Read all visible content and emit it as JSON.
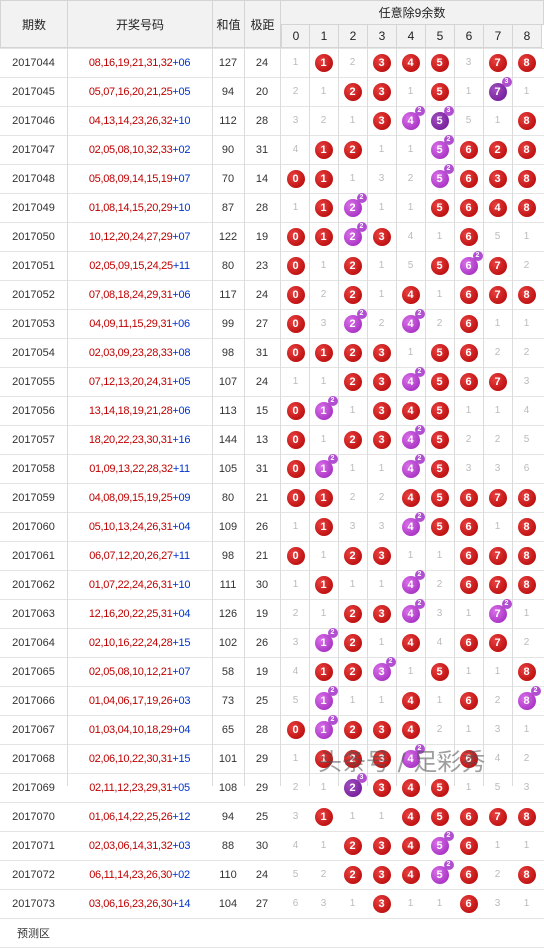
{
  "headers": {
    "period": "期数",
    "numbers": "开奖号码",
    "sum": "和值",
    "span": "极距",
    "group": "任意除9余数",
    "digits": [
      "0",
      "1",
      "2",
      "3",
      "4",
      "5",
      "6",
      "7",
      "8"
    ]
  },
  "rows": [
    {
      "period": "2017044",
      "nums": "08,16,19,21,31,32",
      "blue": "+06",
      "sum": "127",
      "span": "24",
      "cells": [
        {
          "t": "1"
        },
        {
          "b": "1"
        },
        {
          "t": "2"
        },
        {
          "b": "3"
        },
        {
          "b": "4"
        },
        {
          "b": "5"
        },
        {
          "t": "3"
        },
        {
          "b": "7"
        },
        {
          "b": "8"
        }
      ]
    },
    {
      "period": "2017045",
      "nums": "05,07,16,20,21,25",
      "blue": "+05",
      "sum": "94",
      "span": "20",
      "cells": [
        {
          "t": "2"
        },
        {
          "t": "1"
        },
        {
          "b": "2"
        },
        {
          "b": "3"
        },
        {
          "t": "1"
        },
        {
          "b": "5"
        },
        {
          "t": "1"
        },
        {
          "b": "7",
          "c": "dpurple",
          "s": "3"
        },
        {
          "t": "1"
        }
      ]
    },
    {
      "period": "2017046",
      "nums": "04,13,14,23,26,32",
      "blue": "+10",
      "sum": "112",
      "span": "28",
      "cells": [
        {
          "t": "3"
        },
        {
          "t": "2"
        },
        {
          "t": "1"
        },
        {
          "b": "3"
        },
        {
          "b": "4",
          "c": "purple",
          "s": "2"
        },
        {
          "b": "5",
          "c": "dpurple",
          "s": "3"
        },
        {
          "t": "5"
        },
        {
          "t": "1"
        },
        {
          "b": "8"
        }
      ]
    },
    {
      "period": "2017047",
      "nums": "02,05,08,10,32,33",
      "blue": "+02",
      "sum": "90",
      "span": "31",
      "cells": [
        {
          "t": "4"
        },
        {
          "b": "1"
        },
        {
          "b": "2"
        },
        {
          "t": "1"
        },
        {
          "t": "1"
        },
        {
          "b": "5",
          "c": "purple",
          "s": "2"
        },
        {
          "b": "6"
        },
        {
          "b": "2"
        },
        {
          "b": "8"
        }
      ]
    },
    {
      "period": "2017048",
      "nums": "05,08,09,14,15,19",
      "blue": "+07",
      "sum": "70",
      "span": "14",
      "cells": [
        {
          "b": "0"
        },
        {
          "b": "1"
        },
        {
          "t": "1"
        },
        {
          "t": "3"
        },
        {
          "t": "2"
        },
        {
          "b": "5",
          "c": "purple",
          "s": "2"
        },
        {
          "b": "6"
        },
        {
          "b": "3"
        },
        {
          "b": "8"
        }
      ]
    },
    {
      "period": "2017049",
      "nums": "01,08,14,15,20,29",
      "blue": "+10",
      "sum": "87",
      "span": "28",
      "cells": [
        {
          "t": "1"
        },
        {
          "b": "1"
        },
        {
          "b": "2",
          "c": "purple",
          "s": "2"
        },
        {
          "t": "1"
        },
        {
          "t": "1"
        },
        {
          "b": "5"
        },
        {
          "b": "6"
        },
        {
          "b": "4"
        },
        {
          "b": "8"
        }
      ]
    },
    {
      "period": "2017050",
      "nums": "10,12,20,24,27,29",
      "blue": "+07",
      "sum": "122",
      "span": "19",
      "cells": [
        {
          "b": "0"
        },
        {
          "b": "1"
        },
        {
          "b": "2",
          "c": "purple",
          "s": "2"
        },
        {
          "b": "3"
        },
        {
          "t": "4"
        },
        {
          "t": "1"
        },
        {
          "b": "6"
        },
        {
          "t": "5"
        },
        {
          "t": "1"
        }
      ]
    },
    {
      "period": "2017051",
      "nums": "02,05,09,15,24,25",
      "blue": "+11",
      "sum": "80",
      "span": "23",
      "cells": [
        {
          "b": "0"
        },
        {
          "t": "1"
        },
        {
          "b": "2"
        },
        {
          "t": "1"
        },
        {
          "t": "5"
        },
        {
          "b": "5"
        },
        {
          "b": "6",
          "c": "purple",
          "s": "2"
        },
        {
          "b": "7"
        },
        {
          "t": "2"
        }
      ]
    },
    {
      "period": "2017052",
      "nums": "07,08,18,24,29,31",
      "blue": "+06",
      "sum": "117",
      "span": "24",
      "cells": [
        {
          "b": "0"
        },
        {
          "t": "2"
        },
        {
          "b": "2"
        },
        {
          "t": "1"
        },
        {
          "b": "4"
        },
        {
          "t": "1"
        },
        {
          "b": "6"
        },
        {
          "b": "7"
        },
        {
          "b": "8"
        }
      ]
    },
    {
      "period": "2017053",
      "nums": "04,09,11,15,29,31",
      "blue": "+06",
      "sum": "99",
      "span": "27",
      "cells": [
        {
          "b": "0"
        },
        {
          "t": "3"
        },
        {
          "b": "2",
          "c": "purple",
          "s": "2"
        },
        {
          "t": "2"
        },
        {
          "b": "4",
          "c": "purple",
          "s": "2"
        },
        {
          "t": "2"
        },
        {
          "b": "6"
        },
        {
          "t": "1"
        },
        {
          "t": "1"
        }
      ]
    },
    {
      "period": "2017054",
      "nums": "02,03,09,23,28,33",
      "blue": "+08",
      "sum": "98",
      "span": "31",
      "cells": [
        {
          "b": "0"
        },
        {
          "b": "1"
        },
        {
          "b": "2"
        },
        {
          "b": "3"
        },
        {
          "t": "1"
        },
        {
          "b": "5"
        },
        {
          "b": "6"
        },
        {
          "t": "2"
        },
        {
          "t": "2"
        }
      ]
    },
    {
      "period": "2017055",
      "nums": "07,12,13,20,24,31",
      "blue": "+05",
      "sum": "107",
      "span": "24",
      "cells": [
        {
          "t": "1"
        },
        {
          "t": "1"
        },
        {
          "b": "2"
        },
        {
          "b": "3"
        },
        {
          "b": "4",
          "c": "purple",
          "s": "2"
        },
        {
          "b": "5"
        },
        {
          "b": "6"
        },
        {
          "b": "7"
        },
        {
          "t": "3"
        }
      ]
    },
    {
      "period": "2017056",
      "nums": "13,14,18,19,21,28",
      "blue": "+06",
      "sum": "113",
      "span": "15",
      "cells": [
        {
          "b": "0"
        },
        {
          "b": "1",
          "c": "purple",
          "s": "2"
        },
        {
          "t": "1"
        },
        {
          "b": "3"
        },
        {
          "b": "4"
        },
        {
          "b": "5"
        },
        {
          "t": "1"
        },
        {
          "t": "1"
        },
        {
          "t": "4"
        }
      ]
    },
    {
      "period": "2017057",
      "nums": "18,20,22,23,30,31",
      "blue": "+16",
      "sum": "144",
      "span": "13",
      "cells": [
        {
          "b": "0"
        },
        {
          "t": "1"
        },
        {
          "b": "2"
        },
        {
          "b": "3"
        },
        {
          "b": "4",
          "c": "purple",
          "s": "2"
        },
        {
          "b": "5"
        },
        {
          "t": "2"
        },
        {
          "t": "2"
        },
        {
          "t": "5"
        }
      ]
    },
    {
      "period": "2017058",
      "nums": "01,09,13,22,28,32",
      "blue": "+11",
      "sum": "105",
      "span": "31",
      "cells": [
        {
          "b": "0"
        },
        {
          "b": "1",
          "c": "purple",
          "s": "2"
        },
        {
          "t": "1"
        },
        {
          "t": "1"
        },
        {
          "b": "4",
          "c": "purple",
          "s": "2"
        },
        {
          "b": "5"
        },
        {
          "t": "3"
        },
        {
          "t": "3"
        },
        {
          "t": "6"
        }
      ]
    },
    {
      "period": "2017059",
      "nums": "04,08,09,15,19,25",
      "blue": "+09",
      "sum": "80",
      "span": "21",
      "cells": [
        {
          "b": "0"
        },
        {
          "b": "1"
        },
        {
          "t": "2"
        },
        {
          "t": "2"
        },
        {
          "b": "4"
        },
        {
          "b": "5"
        },
        {
          "b": "6"
        },
        {
          "b": "7"
        },
        {
          "b": "8"
        }
      ]
    },
    {
      "period": "2017060",
      "nums": "05,10,13,24,26,31",
      "blue": "+04",
      "sum": "109",
      "span": "26",
      "cells": [
        {
          "t": "1"
        },
        {
          "b": "1"
        },
        {
          "t": "3"
        },
        {
          "t": "3"
        },
        {
          "b": "4",
          "c": "purple",
          "s": "2"
        },
        {
          "b": "5"
        },
        {
          "b": "6"
        },
        {
          "t": "1"
        },
        {
          "b": "8"
        }
      ]
    },
    {
      "period": "2017061",
      "nums": "06,07,12,20,26,27",
      "blue": "+11",
      "sum": "98",
      "span": "21",
      "cells": [
        {
          "b": "0"
        },
        {
          "t": "1"
        },
        {
          "b": "2"
        },
        {
          "b": "3"
        },
        {
          "t": "1"
        },
        {
          "t": "1"
        },
        {
          "b": "6"
        },
        {
          "b": "7"
        },
        {
          "b": "8"
        }
      ]
    },
    {
      "period": "2017062",
      "nums": "01,07,22,24,26,31",
      "blue": "+10",
      "sum": "111",
      "span": "30",
      "cells": [
        {
          "t": "1"
        },
        {
          "b": "1"
        },
        {
          "t": "1"
        },
        {
          "t": "1"
        },
        {
          "b": "4",
          "c": "purple",
          "s": "2"
        },
        {
          "t": "2"
        },
        {
          "b": "6"
        },
        {
          "b": "7"
        },
        {
          "b": "8"
        }
      ]
    },
    {
      "period": "2017063",
      "nums": "12,16,20,22,25,31",
      "blue": "+04",
      "sum": "126",
      "span": "19",
      "cells": [
        {
          "t": "2"
        },
        {
          "t": "1"
        },
        {
          "b": "2"
        },
        {
          "b": "3"
        },
        {
          "b": "4",
          "c": "purple",
          "s": "2"
        },
        {
          "t": "3"
        },
        {
          "t": "1"
        },
        {
          "b": "7",
          "c": "purple",
          "s": "2"
        },
        {
          "t": "1"
        }
      ]
    },
    {
      "period": "2017064",
      "nums": "02,10,16,22,24,28",
      "blue": "+15",
      "sum": "102",
      "span": "26",
      "cells": [
        {
          "t": "3"
        },
        {
          "b": "1",
          "c": "purple",
          "s": "2"
        },
        {
          "b": "2"
        },
        {
          "t": "1"
        },
        {
          "b": "4"
        },
        {
          "t": "4"
        },
        {
          "b": "6"
        },
        {
          "b": "7"
        },
        {
          "t": "2"
        }
      ]
    },
    {
      "period": "2017065",
      "nums": "02,05,08,10,12,21",
      "blue": "+07",
      "sum": "58",
      "span": "19",
      "cells": [
        {
          "t": "4"
        },
        {
          "b": "1"
        },
        {
          "b": "2"
        },
        {
          "b": "3",
          "c": "purple",
          "s": "2"
        },
        {
          "t": "1"
        },
        {
          "b": "5"
        },
        {
          "t": "1"
        },
        {
          "t": "1"
        },
        {
          "b": "8"
        }
      ]
    },
    {
      "period": "2017066",
      "nums": "01,04,06,17,19,26",
      "blue": "+03",
      "sum": "73",
      "span": "25",
      "cells": [
        {
          "t": "5"
        },
        {
          "b": "1",
          "c": "purple",
          "s": "2"
        },
        {
          "t": "1"
        },
        {
          "t": "1"
        },
        {
          "b": "4"
        },
        {
          "t": "1"
        },
        {
          "b": "6"
        },
        {
          "t": "2"
        },
        {
          "b": "8",
          "c": "purple",
          "s": "2"
        }
      ]
    },
    {
      "period": "2017067",
      "nums": "01,03,04,10,18,29",
      "blue": "+04",
      "sum": "65",
      "span": "28",
      "cells": [
        {
          "b": "0"
        },
        {
          "b": "1",
          "c": "purple",
          "s": "2"
        },
        {
          "b": "2"
        },
        {
          "b": "3"
        },
        {
          "b": "4"
        },
        {
          "t": "2"
        },
        {
          "t": "1"
        },
        {
          "t": "3"
        },
        {
          "t": "1"
        }
      ]
    },
    {
      "period": "2017068",
      "nums": "02,06,10,22,30,31",
      "blue": "+15",
      "sum": "101",
      "span": "29",
      "cells": [
        {
          "t": "1"
        },
        {
          "b": "1"
        },
        {
          "b": "2"
        },
        {
          "b": "3"
        },
        {
          "b": "4",
          "c": "purple",
          "s": "2"
        },
        {
          "t": "3"
        },
        {
          "b": "6"
        },
        {
          "t": "4"
        },
        {
          "t": "2"
        }
      ]
    },
    {
      "period": "2017069",
      "nums": "02,11,12,23,29,31",
      "blue": "+05",
      "sum": "108",
      "span": "29",
      "cells": [
        {
          "t": "2"
        },
        {
          "t": "1"
        },
        {
          "b": "2",
          "c": "dpurple",
          "s": "3"
        },
        {
          "b": "3"
        },
        {
          "b": "4"
        },
        {
          "b": "5"
        },
        {
          "t": "1"
        },
        {
          "t": "5"
        },
        {
          "t": "3"
        }
      ]
    },
    {
      "period": "2017070",
      "nums": "01,06,14,22,25,26",
      "blue": "+12",
      "sum": "94",
      "span": "25",
      "cells": [
        {
          "t": "3"
        },
        {
          "b": "1"
        },
        {
          "t": "1"
        },
        {
          "t": "1"
        },
        {
          "b": "4"
        },
        {
          "b": "5"
        },
        {
          "b": "6"
        },
        {
          "b": "7"
        },
        {
          "b": "8"
        }
      ]
    },
    {
      "period": "2017071",
      "nums": "02,03,06,14,31,32",
      "blue": "+03",
      "sum": "88",
      "span": "30",
      "cells": [
        {
          "t": "4"
        },
        {
          "t": "1"
        },
        {
          "b": "2"
        },
        {
          "b": "3"
        },
        {
          "b": "4"
        },
        {
          "b": "5",
          "c": "purple",
          "s": "2"
        },
        {
          "b": "6"
        },
        {
          "t": "1"
        },
        {
          "t": "1"
        }
      ]
    },
    {
      "period": "2017072",
      "nums": "06,11,14,23,26,30",
      "blue": "+02",
      "sum": "110",
      "span": "24",
      "cells": [
        {
          "t": "5"
        },
        {
          "t": "2"
        },
        {
          "b": "2"
        },
        {
          "b": "3"
        },
        {
          "b": "4"
        },
        {
          "b": "5",
          "c": "purple",
          "s": "2"
        },
        {
          "b": "6"
        },
        {
          "t": "2"
        },
        {
          "b": "8"
        }
      ]
    },
    {
      "period": "2017073",
      "nums": "03,06,16,23,26,30",
      "blue": "+14",
      "sum": "104",
      "span": "27",
      "cells": [
        {
          "t": "6"
        },
        {
          "t": "3"
        },
        {
          "t": "1"
        },
        {
          "b": "3"
        },
        {
          "t": "1"
        },
        {
          "t": "1"
        },
        {
          "b": "6"
        },
        {
          "t": "3"
        },
        {
          "t": "1"
        }
      ]
    }
  ],
  "footer": {
    "label": "预测区"
  },
  "watermark": "头条号 / 足彩秀"
}
